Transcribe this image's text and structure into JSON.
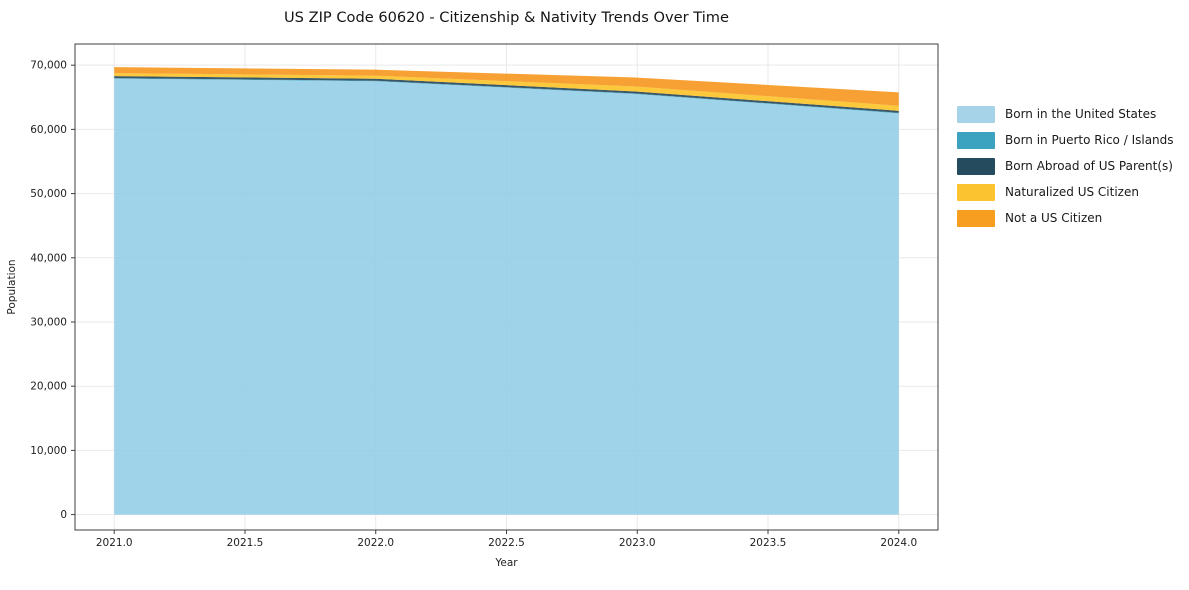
{
  "title": "US ZIP Code 60620 - Citizenship & Nativity Trends Over Time",
  "axes": {
    "xlabel": "Year",
    "ylabel": "Population",
    "x_tick_labels": [
      "2021.0",
      "2021.5",
      "2022.0",
      "2022.5",
      "2023.0",
      "2023.5",
      "2024.0"
    ],
    "y_tick_labels": [
      "0",
      "10,000",
      "20,000",
      "30,000",
      "40,000",
      "50,000",
      "60,000",
      "70,000"
    ]
  },
  "colors": {
    "grid": "#e9e9e9",
    "spine": "#3c3c3c",
    "tick_text": "#1f1f1f",
    "background": "#ffffff"
  },
  "chart_data": {
    "type": "area",
    "stacked": true,
    "title": "US ZIP Code 60620 - Citizenship & Nativity Trends Over Time",
    "xlabel": "Year",
    "ylabel": "Population",
    "grid": true,
    "legend_position": "right",
    "x": [
      2021,
      2022,
      2023,
      2024
    ],
    "x_ticks": [
      2021.0,
      2021.5,
      2022.0,
      2022.5,
      2023.0,
      2023.5,
      2024.0
    ],
    "y_ticks": [
      0,
      10000,
      20000,
      30000,
      40000,
      50000,
      60000,
      70000
    ],
    "xlim": [
      2020.85,
      2024.15
    ],
    "ylim": [
      -2400,
      73300
    ],
    "fill_alpha": 0.85,
    "series": [
      {
        "name": "Born in the United States",
        "color": "#8ecbe6",
        "legend_color": "#a6d3e8",
        "values": [
          67900,
          67500,
          65500,
          62500
        ]
      },
      {
        "name": "Born in Puerto Rico / Islands",
        "color": "#2b9cbd",
        "legend_color": "#3ba3c0",
        "values": [
          80,
          80,
          80,
          80
        ]
      },
      {
        "name": "Born Abroad of US Parent(s)",
        "color": "#173a4e",
        "legend_color": "#254b5e",
        "values": [
          310,
          310,
          310,
          310
        ]
      },
      {
        "name": "Naturalized US Citizen",
        "color": "#fcbe1a",
        "legend_color": "#fcc330",
        "values": [
          470,
          470,
          780,
          780
        ]
      },
      {
        "name": "Not a US Citizen",
        "color": "#f69110",
        "legend_color": "#f79e20",
        "values": [
          940,
          940,
          1400,
          2100
        ]
      }
    ]
  }
}
